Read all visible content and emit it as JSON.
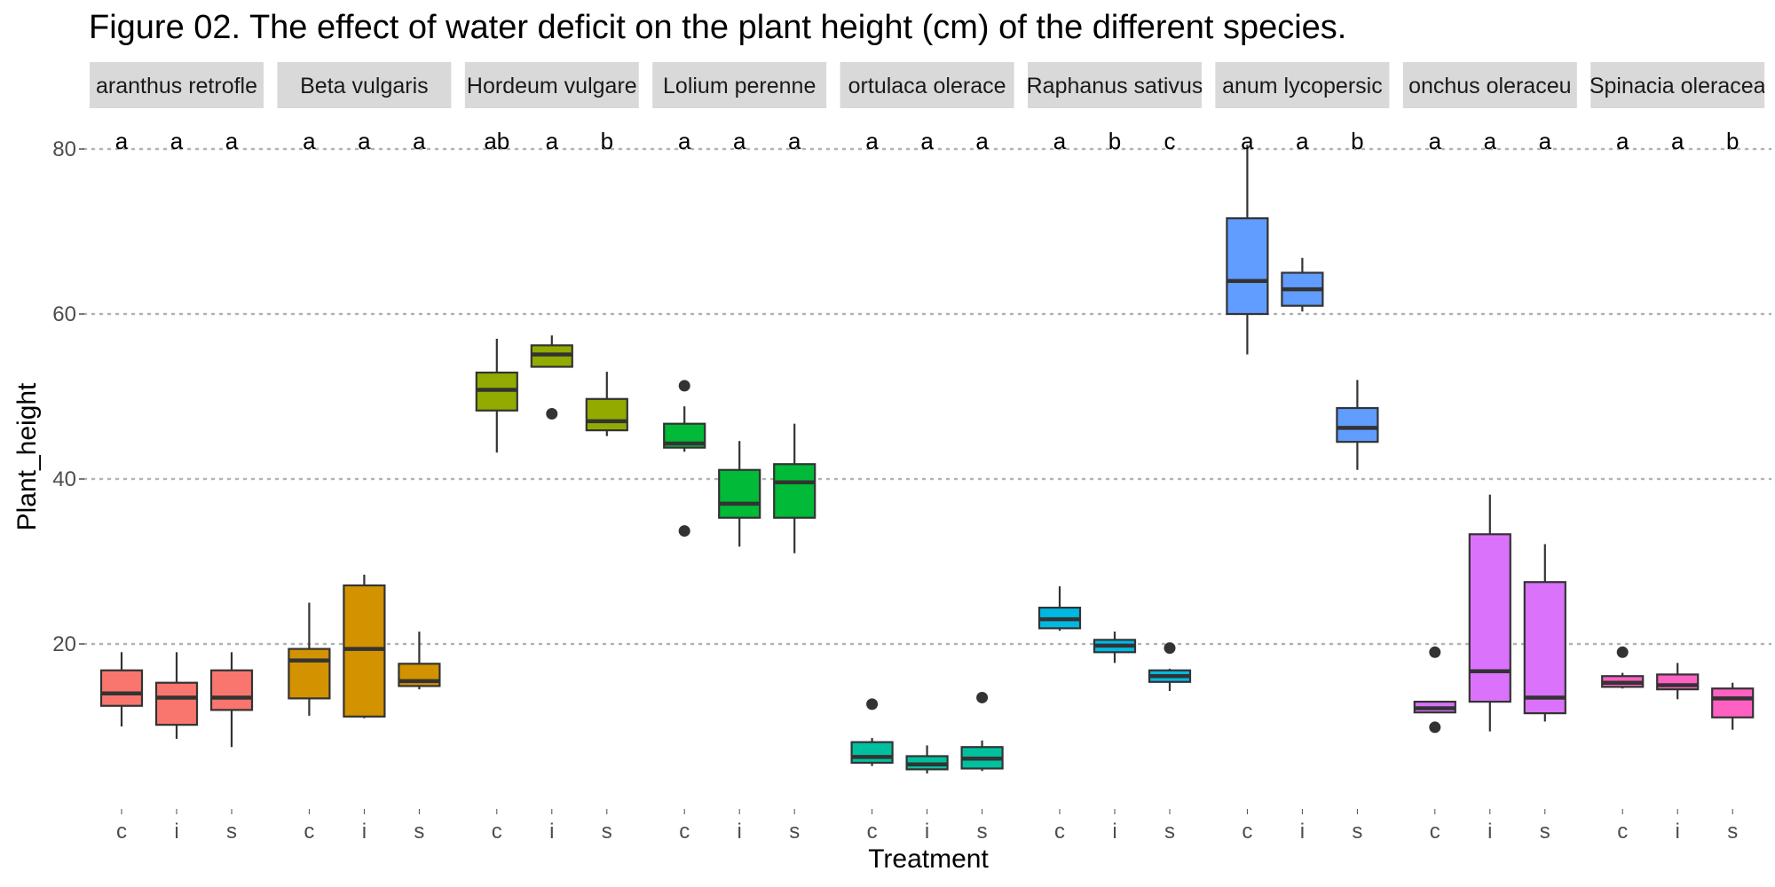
{
  "title": "Figure 02. The effect of water deficit on the plant height (cm) of the different species.",
  "chart_data": {
    "type": "boxplot",
    "xlabel": "Treatment",
    "ylabel": "Plant_height",
    "ylim": [
      0,
      82
    ],
    "yticks": [
      20,
      40,
      60,
      80
    ],
    "grid": "major y dotted",
    "legend": "none",
    "categories": [
      "c",
      "i",
      "s"
    ],
    "facets": [
      {
        "species": "Amaranthus retroflexus",
        "strip_label": "aranthus retrofle",
        "color": "#F8766D",
        "boxes": [
          {
            "treatment": "c",
            "letter": "a",
            "min": 10,
            "q1": 12.5,
            "median": 14,
            "q3": 16.8,
            "max": 19,
            "outliers": []
          },
          {
            "treatment": "i",
            "letter": "a",
            "min": 8.5,
            "q1": 10.2,
            "median": 13.5,
            "q3": 15.3,
            "max": 19,
            "outliers": []
          },
          {
            "treatment": "s",
            "letter": "a",
            "min": 7.5,
            "q1": 12,
            "median": 13.5,
            "q3": 16.8,
            "max": 19,
            "outliers": []
          }
        ]
      },
      {
        "species": "Beta vulgaris",
        "strip_label": "Beta vulgaris",
        "color": "#D39200",
        "boxes": [
          {
            "treatment": "c",
            "letter": "a",
            "min": 11.3,
            "q1": 13.4,
            "median": 18,
            "q3": 19.4,
            "max": 25,
            "outliers": []
          },
          {
            "treatment": "i",
            "letter": "a",
            "min": 11,
            "q1": 11.2,
            "median": 19.4,
            "q3": 27.1,
            "max": 28.4,
            "outliers": []
          },
          {
            "treatment": "s",
            "letter": "a",
            "min": 14.5,
            "q1": 14.9,
            "median": 15.5,
            "q3": 17.6,
            "max": 21.5,
            "outliers": []
          }
        ]
      },
      {
        "species": "Hordeum vulgare",
        "strip_label": "Hordeum vulgare",
        "color": "#93AA00",
        "boxes": [
          {
            "treatment": "c",
            "letter": "ab",
            "min": 43.2,
            "q1": 48.3,
            "median": 50.8,
            "q3": 52.9,
            "max": 57,
            "outliers": []
          },
          {
            "treatment": "i",
            "letter": "a",
            "min": 53.6,
            "q1": 53.6,
            "median": 55.1,
            "q3": 56.2,
            "max": 57.4,
            "outliers": [
              47.9
            ]
          },
          {
            "treatment": "s",
            "letter": "b",
            "min": 45.2,
            "q1": 45.9,
            "median": 47,
            "q3": 49.7,
            "max": 53,
            "outliers": []
          }
        ]
      },
      {
        "species": "Lolium perenne",
        "strip_label": "Lolium perenne",
        "color": "#00BA38",
        "boxes": [
          {
            "treatment": "c",
            "letter": "a",
            "min": 43.3,
            "q1": 43.8,
            "median": 44.3,
            "q3": 46.7,
            "max": 48.8,
            "outliers": [
              51.3,
              33.7
            ]
          },
          {
            "treatment": "i",
            "letter": "a",
            "min": 31.8,
            "q1": 35.3,
            "median": 37,
            "q3": 41.1,
            "max": 44.6,
            "outliers": []
          },
          {
            "treatment": "s",
            "letter": "a",
            "min": 31,
            "q1": 35.3,
            "median": 39.6,
            "q3": 41.8,
            "max": 46.7,
            "outliers": []
          }
        ]
      },
      {
        "species": "Portulaca oleracea",
        "strip_label": "ortulaca olerace",
        "color": "#00C19F",
        "boxes": [
          {
            "treatment": "c",
            "letter": "a",
            "min": 5.2,
            "q1": 5.6,
            "median": 6.3,
            "q3": 8.1,
            "max": 8.6,
            "outliers": [
              12.7
            ]
          },
          {
            "treatment": "i",
            "letter": "a",
            "min": 4.3,
            "q1": 4.8,
            "median": 5.4,
            "q3": 6.4,
            "max": 7.7,
            "outliers": []
          },
          {
            "treatment": "s",
            "letter": "a",
            "min": 4.6,
            "q1": 4.9,
            "median": 6.1,
            "q3": 7.5,
            "max": 8.3,
            "outliers": [
              13.5
            ]
          }
        ]
      },
      {
        "species": "Raphanus sativus",
        "strip_label": "Raphanus sativus",
        "color": "#00B9E3",
        "boxes": [
          {
            "treatment": "c",
            "letter": "a",
            "min": 21.6,
            "q1": 21.9,
            "median": 23,
            "q3": 24.4,
            "max": 27,
            "outliers": []
          },
          {
            "treatment": "i",
            "letter": "b",
            "min": 17.7,
            "q1": 19,
            "median": 19.8,
            "q3": 20.5,
            "max": 21.5,
            "outliers": []
          },
          {
            "treatment": "s",
            "letter": "c",
            "min": 14.3,
            "q1": 15.4,
            "median": 16.1,
            "q3": 16.8,
            "max": 17,
            "outliers": [
              19.5
            ]
          }
        ]
      },
      {
        "species": "Solanum lycopersicum",
        "strip_label": "anum lycopersic",
        "color": "#619CFF",
        "boxes": [
          {
            "treatment": "c",
            "letter": "a",
            "min": 55.1,
            "q1": 60,
            "median": 64,
            "q3": 71.6,
            "max": 80.5,
            "outliers": []
          },
          {
            "treatment": "i",
            "letter": "a",
            "min": 60.3,
            "q1": 61,
            "median": 63,
            "q3": 65,
            "max": 66.8,
            "outliers": []
          },
          {
            "treatment": "s",
            "letter": "b",
            "min": 41.1,
            "q1": 44.5,
            "median": 46.2,
            "q3": 48.6,
            "max": 52,
            "outliers": []
          }
        ]
      },
      {
        "species": "Sonchus oleraceus",
        "strip_label": "onchus oleraceu",
        "color": "#DB72FB",
        "boxes": [
          {
            "treatment": "c",
            "letter": "a",
            "min": 11.6,
            "q1": 11.7,
            "median": 12.2,
            "q3": 13,
            "max": 13,
            "outliers": [
              19,
              9.9
            ]
          },
          {
            "treatment": "i",
            "letter": "a",
            "min": 9.4,
            "q1": 13,
            "median": 16.7,
            "q3": 33.3,
            "max": 38.1,
            "outliers": []
          },
          {
            "treatment": "s",
            "letter": "a",
            "min": 10.6,
            "q1": 11.6,
            "median": 13.5,
            "q3": 27.5,
            "max": 32.1,
            "outliers": []
          }
        ]
      },
      {
        "species": "Spinacia oleracea",
        "strip_label": "Spinacia oleracea",
        "color": "#FF61C3",
        "boxes": [
          {
            "treatment": "c",
            "letter": "a",
            "min": 14.6,
            "q1": 14.8,
            "median": 15.3,
            "q3": 16.1,
            "max": 16.5,
            "outliers": [
              19
            ]
          },
          {
            "treatment": "i",
            "letter": "a",
            "min": 13.3,
            "q1": 14.5,
            "median": 15,
            "q3": 16.3,
            "max": 17.7,
            "outliers": []
          },
          {
            "treatment": "s",
            "letter": "b",
            "min": 9.6,
            "q1": 11.1,
            "median": 13.4,
            "q3": 14.6,
            "max": 15.3,
            "outliers": []
          }
        ]
      }
    ]
  }
}
